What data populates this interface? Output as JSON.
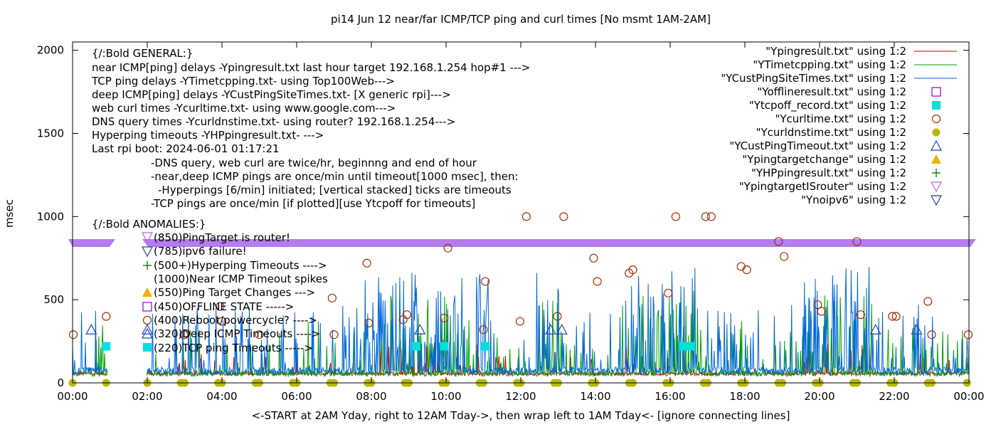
{
  "chart_data": {
    "type": "scatter",
    "title": "pi14 Jun 12  near/far ICMP/TCP ping and curl times [No msmt 1AM-2AM]",
    "xlabel": "<-START at 2AM Yday, right to 12AM Tday->, then wrap left to 1AM Tday<- [ignore connecting lines]",
    "ylabel": "msec",
    "xlim": [
      0,
      24
    ],
    "ylim": [
      0,
      2050
    ],
    "x_ticks": [
      "00:00",
      "02:00",
      "04:00",
      "06:00",
      "08:00",
      "10:00",
      "12:00",
      "14:00",
      "16:00",
      "18:00",
      "20:00",
      "22:00",
      "00:00"
    ],
    "y_ticks": [
      0,
      500,
      1000,
      1500,
      2000
    ],
    "legend_position": "top-right",
    "annotations": [
      "{/:Bold GENERAL:}",
      "near ICMP[ping] delays -Ypingresult.txt last hour target 192.168.1.254 hop#1 --->",
      "TCP ping delays -YTimetcpping.txt- using Top100Web--->",
      "deep ICMP[ping] delays -YCustPingSiteTimes.txt- [X generic rpi]--->",
      "web curl times -Ycurltime.txt- using www.google.com--->",
      "DNS query times -Ycurldnstime.txt- using router? 192.168.1.254--->",
      "Hyperping timeouts -YHPpingresult.txt- --->",
      "Last rpi boot: 2024-06-01 01:17:21",
      "-DNS query, web curl are twice/hr, beginnng and end of hour",
      "-near,deep ICMP pings are once/min until timeout[1000 msec], then:",
      "-Hyperpings [6/min] initiated; [vertical stacked] ticks are timeouts",
      "-TCP pings are once/min [if plotted][use Ytcpoff for timeouts]",
      "{/:Bold ANOMALIES:}",
      "(850)PingTarget is router!",
      "(785)ipv6 failure!",
      "(500+)Hyperping Timeouts ---->",
      "(1000)Near ICMP Timeout spikes",
      "(550)Ping Target Changes --->",
      "(450)OFFLINE STATE ----->",
      "(400)Reboot/powercycle? ---->",
      "(320)Deep ICMP Timeouts ---->",
      "(220)TCP ping Timeouts ----->"
    ],
    "series": [
      {
        "name": "\"Ypingresult.txt\" using 1:2",
        "style": "line",
        "color": "#cc0000"
      },
      {
        "name": "\"YTimetcpping.txt\" using 1:2",
        "style": "line",
        "color": "#00a000"
      },
      {
        "name": "\"YCustPingSiteTimes.txt\" using 1:2",
        "style": "line",
        "color": "#0066dd"
      },
      {
        "name": "\"Yofflineresult.txt\" using 1:2",
        "style": "open-square",
        "color": "#9400d3"
      },
      {
        "name": "\"Ytcpoff_record.txt\" using 1:2",
        "style": "filled-square",
        "color": "#00e0e0",
        "points": [
          [
            0.9,
            220
          ],
          [
            9.2,
            220
          ],
          [
            9.95,
            220
          ],
          [
            11.05,
            220
          ],
          [
            16.35,
            220
          ],
          [
            16.55,
            220
          ]
        ]
      },
      {
        "name": "\"Ycurltime.txt\" using 1:2",
        "style": "open-circle",
        "color": "#a0300a",
        "points": [
          [
            0.02,
            290
          ],
          [
            0.9,
            400
          ],
          [
            2.98,
            290
          ],
          [
            3,
            290
          ],
          [
            3.95,
            460
          ],
          [
            4.0,
            370
          ],
          [
            5.0,
            290
          ],
          [
            6.95,
            510
          ],
          [
            7.0,
            290
          ],
          [
            7.88,
            720
          ],
          [
            7.93,
            360
          ],
          [
            8.85,
            380
          ],
          [
            8.95,
            410
          ],
          [
            9.95,
            390
          ],
          [
            10.05,
            810
          ],
          [
            11.0,
            320
          ],
          [
            11.05,
            610
          ],
          [
            11.98,
            370
          ],
          [
            12.15,
            1000
          ],
          [
            12.98,
            400
          ],
          [
            13.15,
            1000
          ],
          [
            13.95,
            750
          ],
          [
            14.05,
            610
          ],
          [
            14.9,
            660
          ],
          [
            15.0,
            680
          ],
          [
            15.95,
            540
          ],
          [
            16.15,
            1000
          ],
          [
            16.95,
            1000
          ],
          [
            17.1,
            1000
          ],
          [
            17.9,
            700
          ],
          [
            18.05,
            680
          ],
          [
            18.9,
            850
          ],
          [
            19.05,
            760
          ],
          [
            19.95,
            470
          ],
          [
            20.05,
            430
          ],
          [
            21.0,
            850
          ],
          [
            21.1,
            410
          ],
          [
            21.95,
            400
          ],
          [
            22.05,
            400
          ],
          [
            22.9,
            490
          ],
          [
            23.0,
            290
          ],
          [
            23.98,
            290
          ]
        ]
      },
      {
        "name": "\"Ycurldnstime.txt\" using 1:2",
        "style": "filled-circle",
        "color": "#b8b800",
        "points": [
          [
            0,
            0
          ],
          [
            0.9,
            0
          ],
          [
            2.0,
            0
          ],
          [
            2.9,
            0
          ],
          [
            3.0,
            0
          ],
          [
            3.9,
            0
          ],
          [
            4.0,
            0
          ],
          [
            4.9,
            0
          ],
          [
            5.0,
            0
          ],
          [
            5.9,
            0
          ],
          [
            6.0,
            0
          ],
          [
            6.9,
            0
          ],
          [
            7.0,
            0
          ],
          [
            7.9,
            0
          ],
          [
            8.0,
            0
          ],
          [
            8.9,
            0
          ],
          [
            9.0,
            0
          ],
          [
            9.9,
            0
          ],
          [
            10.0,
            0
          ],
          [
            10.9,
            0
          ],
          [
            11.0,
            0
          ],
          [
            11.9,
            0
          ],
          [
            12.0,
            0
          ],
          [
            12.9,
            0
          ],
          [
            13.0,
            0
          ],
          [
            13.9,
            0
          ],
          [
            14.0,
            0
          ],
          [
            14.9,
            0
          ],
          [
            15.0,
            0
          ],
          [
            15.9,
            0
          ],
          [
            16.0,
            0
          ],
          [
            16.9,
            0
          ],
          [
            17.0,
            0
          ],
          [
            17.9,
            0
          ],
          [
            18.0,
            0
          ],
          [
            18.9,
            0
          ],
          [
            19.0,
            0
          ],
          [
            19.9,
            0
          ],
          [
            20.0,
            0
          ],
          [
            20.9,
            0
          ],
          [
            21.0,
            0
          ],
          [
            21.9,
            0
          ],
          [
            22.0,
            0
          ],
          [
            22.9,
            0
          ],
          [
            23.0,
            0
          ],
          [
            23.95,
            0
          ]
        ]
      },
      {
        "name": "\"YCustPingTimeout.txt\" using 1:2",
        "style": "open-triangle-up",
        "color": "#2244bb",
        "points": [
          [
            0.5,
            320
          ],
          [
            2.0,
            320
          ],
          [
            9.3,
            320
          ],
          [
            12.8,
            320
          ],
          [
            13.1,
            320
          ],
          [
            21.5,
            320
          ],
          [
            22.6,
            320
          ]
        ]
      },
      {
        "name": "\"Ypingtargetchange\" using 1:2",
        "style": "filled-triangle-up",
        "color": "#f0b000"
      },
      {
        "name": "\"YHPpingresult.txt\" using 1:2",
        "style": "plus",
        "color": "#006600"
      },
      {
        "name": "\"YpingtargetISrouter\" using 1:2",
        "style": "open-triangle-down",
        "color": "#bb66ee"
      },
      {
        "name": "\"Ynoipv6\" using 1:2",
        "style": "open-triangle-down",
        "color": "#224488"
      }
    ]
  }
}
